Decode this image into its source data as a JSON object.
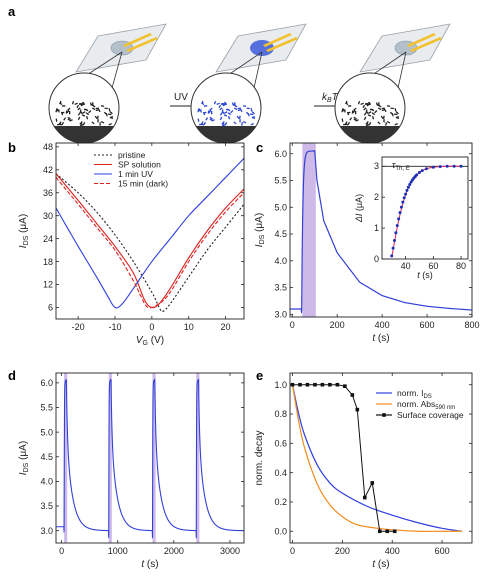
{
  "panel_a": {
    "letter": "a",
    "arrow_uv": "UV",
    "arrow_kbt_main": "k",
    "arrow_kbt_sub": "B",
    "arrow_kbt_tail": "T",
    "colors": {
      "device_spot_1": "#a9b6c7",
      "device_spot_2": "#3b5bd9",
      "molecules_dark": "#222222",
      "molecules_blue": "#2a44d6",
      "electrode": "#f2c12e"
    }
  },
  "chart_data": [
    {
      "panel": "b",
      "type": "line",
      "xlabel": "V",
      "xlabel_sub": "G",
      "xunit": " (V)",
      "ylabel": "I",
      "ylabel_sub": "DS",
      "yunit": " (μA)",
      "xlim": [
        -26,
        25
      ],
      "ylim": [
        3,
        49
      ],
      "xticks": [
        -20,
        -10,
        0,
        10,
        20
      ],
      "yticks": [
        6,
        12,
        18,
        24,
        30,
        36,
        42,
        48
      ],
      "legend_position": "top-center",
      "series": [
        {
          "name": "pristine",
          "color": "#222222",
          "dash": "dotted",
          "x": [
            -26,
            -20,
            -15,
            -10,
            -5,
            0,
            2,
            3,
            5,
            10,
            15,
            20,
            25
          ],
          "y": [
            41,
            36,
            31,
            25,
            18,
            10,
            6,
            5,
            7,
            14,
            21,
            27,
            33
          ]
        },
        {
          "name": "SP solution",
          "color": "#e0201d",
          "dash": "solid",
          "x": [
            -26,
            -20,
            -15,
            -10,
            -5,
            -2,
            0,
            2,
            5,
            10,
            15,
            20,
            25
          ],
          "y": [
            41,
            34,
            28,
            22,
            15,
            8,
            6,
            7,
            11,
            19,
            26,
            32,
            37
          ]
        },
        {
          "name": "1 min UV",
          "color": "#2f3fe0",
          "dash": "solid",
          "x": [
            -26,
            -23,
            -20,
            -15,
            -12,
            -10,
            -8,
            -5,
            0,
            5,
            10,
            15,
            20,
            25
          ],
          "y": [
            32,
            27,
            22,
            14,
            9,
            6,
            7,
            11,
            18,
            24,
            30,
            35,
            40,
            45
          ]
        },
        {
          "name": "15 min (dark)",
          "color": "#e0201d",
          "dash": "dashed",
          "x": [
            -26,
            -20,
            -15,
            -10,
            -5,
            -3,
            -1,
            2,
            5,
            10,
            15,
            20,
            25
          ],
          "y": [
            40,
            33,
            27,
            21,
            13,
            9,
            6,
            7,
            10,
            18,
            25,
            31,
            36
          ]
        }
      ]
    },
    {
      "panel": "c",
      "type": "line",
      "xlabel": "t",
      "xunit": " (s)",
      "ylabel": "I",
      "ylabel_sub": "DS",
      "yunit": " (μA)",
      "xlim": [
        -10,
        800
      ],
      "ylim": [
        2.95,
        6.2
      ],
      "xticks": [
        0,
        200,
        400,
        600,
        800
      ],
      "yticks": [
        3.0,
        3.5,
        4.0,
        4.5,
        5.0,
        5.5,
        6.0
      ],
      "highlight": {
        "x0": 45,
        "x1": 105,
        "color": "#c8b3e6"
      },
      "series": [
        {
          "name": "",
          "color": "#3340d8",
          "x": [
            0,
            40,
            45,
            55,
            65,
            75,
            100,
            110,
            140,
            200,
            300,
            400,
            500,
            600,
            700,
            800
          ],
          "y": [
            3.1,
            3.1,
            4.2,
            5.8,
            6.03,
            6.05,
            6.05,
            5.5,
            4.75,
            4.15,
            3.6,
            3.35,
            3.22,
            3.15,
            3.11,
            3.08
          ]
        }
      ]
    },
    {
      "panel": "c-inset",
      "type": "scatter",
      "xlabel": "t",
      "xunit": " (s)",
      "ylabel": "ΔI",
      "yunit": " (μA)",
      "annotation": "τ",
      "annotation_sub": "Th, E",
      "xlim": [
        23,
        85
      ],
      "ylim": [
        0,
        3.3
      ],
      "xticks": [
        40,
        60,
        80
      ],
      "yticks": [
        0,
        1,
        2,
        3
      ],
      "series": [
        {
          "name": "",
          "color": "#1b2fb8",
          "marker": "dot",
          "x": [
            30,
            31,
            32,
            33,
            34,
            35,
            36,
            37,
            38,
            39,
            40,
            41,
            42,
            43,
            44,
            45,
            46,
            47,
            48,
            50,
            52,
            55,
            60,
            65,
            70,
            75,
            80
          ],
          "y": [
            0.1,
            0.35,
            0.6,
            0.85,
            1.08,
            1.3,
            1.5,
            1.68,
            1.84,
            1.98,
            2.1,
            2.22,
            2.32,
            2.41,
            2.49,
            2.56,
            2.62,
            2.67,
            2.72,
            2.8,
            2.86,
            2.92,
            2.97,
            2.99,
            3.0,
            3.0,
            3.0
          ]
        },
        {
          "name": "",
          "color": "#e02060",
          "marker": "line",
          "x": [
            30,
            35,
            40,
            45,
            50,
            55,
            60,
            70,
            80
          ],
          "y": [
            0.05,
            1.25,
            2.08,
            2.55,
            2.8,
            2.92,
            2.97,
            3.0,
            3.0
          ]
        },
        {
          "name": "",
          "color": "#222222",
          "marker": "hline",
          "x": [
            23,
            85
          ],
          "y": [
            3.0,
            3.0
          ]
        }
      ]
    },
    {
      "panel": "d",
      "type": "line",
      "xlabel": "t",
      "xunit": " (s)",
      "ylabel": "I",
      "ylabel_sub": "DS",
      "yunit": " (μA)",
      "xlim": [
        -100,
        3250
      ],
      "ylim": [
        2.75,
        6.2
      ],
      "xticks": [
        0,
        1000,
        2000,
        3000
      ],
      "yticks": [
        3.0,
        3.5,
        4.0,
        4.5,
        5.0,
        5.5,
        6.0
      ],
      "highlights": [
        {
          "x0": 45,
          "x1": 100
        },
        {
          "x0": 840,
          "x1": 895
        },
        {
          "x0": 1620,
          "x1": 1675
        },
        {
          "x0": 2400,
          "x1": 2455
        }
      ],
      "highlight_color": "#c8b3e6",
      "pulse_starts": [
        45,
        840,
        1620,
        2400
      ],
      "series": [
        {
          "name": "",
          "color": "#3340d8"
        }
      ]
    },
    {
      "panel": "e",
      "type": "line",
      "xlabel": "t",
      "xunit": " (s)",
      "ylabel": "norm. decay",
      "xlim": [
        -10,
        720
      ],
      "ylim": [
        -0.08,
        1.08
      ],
      "xticks": [
        0,
        200,
        400,
        600
      ],
      "yticks": [
        0.0,
        0.2,
        0.4,
        0.6,
        0.8,
        1.0
      ],
      "legend_position": "top-right",
      "series": [
        {
          "name": "norm. I",
          "name_sub": "DS",
          "color": "#2f3fe0",
          "marker": "line",
          "x": [
            0,
            25,
            50,
            100,
            150,
            200,
            300,
            400,
            500,
            600,
            680
          ],
          "y": [
            1.0,
            0.8,
            0.65,
            0.45,
            0.33,
            0.26,
            0.17,
            0.11,
            0.06,
            0.02,
            0.0
          ]
        },
        {
          "name": "norm. Abs",
          "name_sub": "590 nm",
          "color": "#f28c1e",
          "marker": "line",
          "x": [
            0,
            25,
            50,
            100,
            150,
            200,
            250,
            300,
            400,
            500,
            600,
            680
          ],
          "y": [
            1.0,
            0.75,
            0.56,
            0.32,
            0.18,
            0.1,
            0.05,
            0.03,
            0.01,
            0.0,
            0.0,
            0.0
          ]
        },
        {
          "name": "Surface coverage",
          "color": "#111111",
          "marker": "square",
          "x": [
            0,
            30,
            60,
            90,
            120,
            150,
            180,
            210,
            240,
            260,
            290,
            320,
            350,
            380,
            410
          ],
          "y": [
            1.0,
            1.0,
            1.0,
            1.0,
            1.0,
            1.0,
            1.0,
            0.99,
            0.93,
            0.83,
            0.23,
            0.33,
            0.0,
            0.0,
            0.0
          ]
        }
      ]
    }
  ]
}
